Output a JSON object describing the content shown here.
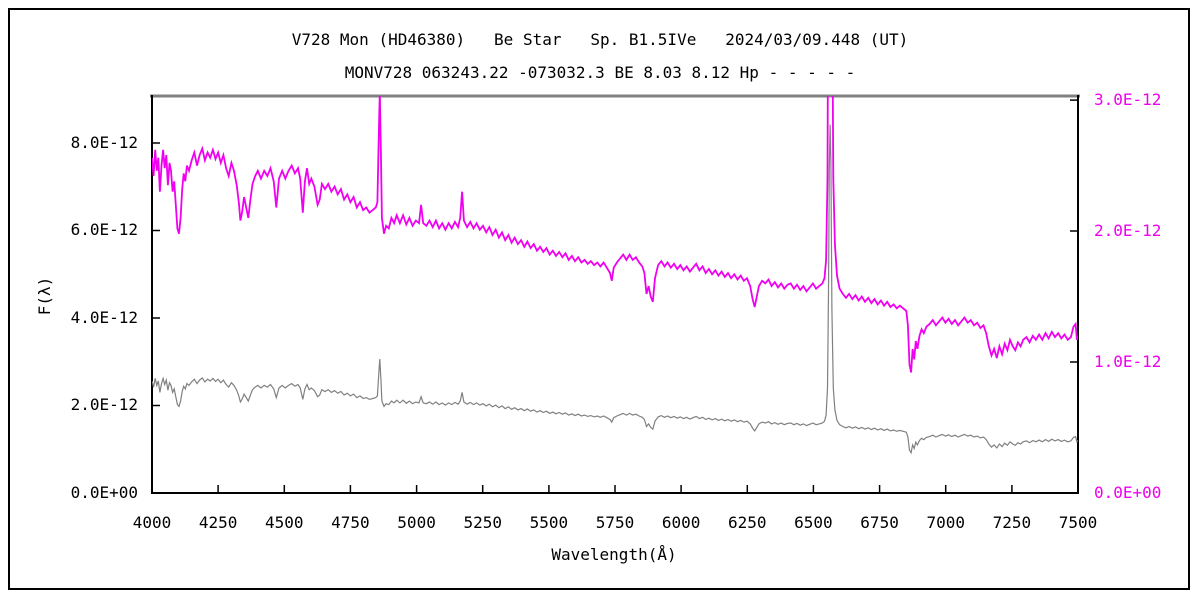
{
  "header": {
    "title_line1": "V728 Mon (HD46380)   Be Star   Sp. B1.5IVe   2024/03/09.448 (UT)",
    "title_line2": "MONV728 063243.22 -073032.3 BE 8.03 8.12 Hp - - - - -"
  },
  "colors": {
    "magenta_series": "#F000F0",
    "gray_series": "#808080",
    "axis_line": "#000000",
    "top_frame": "#808080",
    "background": "#FFFFFF"
  },
  "chart_data": {
    "type": "line",
    "title": "V728 Mon (HD46380) Be Star Sp. B1.5IVe 2024/03/09.448 (UT)",
    "grid": "off",
    "legend": "none",
    "x": {
      "label": "Wavelength(Å)",
      "min": 4000,
      "max": 7500,
      "ticks": [
        {
          "label": "4000",
          "value": 4000
        },
        {
          "label": "4250",
          "value": 4250
        },
        {
          "label": "4500",
          "value": 4500
        },
        {
          "label": "4750",
          "value": 4750
        },
        {
          "label": "5000",
          "value": 5000
        },
        {
          "label": "5250",
          "value": 5250
        },
        {
          "label": "5500",
          "value": 5500
        },
        {
          "label": "5750",
          "value": 5750
        },
        {
          "label": "6000",
          "value": 6000
        },
        {
          "label": "6250",
          "value": 6250
        },
        {
          "label": "6500",
          "value": 6500
        },
        {
          "label": "6750",
          "value": 6750
        },
        {
          "label": "7000",
          "value": 7000
        },
        {
          "label": "7250",
          "value": 7250
        },
        {
          "label": "7500",
          "value": 7500
        }
      ]
    },
    "y_left": {
      "label": "F(λ)",
      "max_x1e12": 9.074,
      "min_x1e12": 0,
      "ticks": [
        {
          "label": "0.0E+00",
          "value": 0
        },
        {
          "label": "2.0E-12",
          "value": 2
        },
        {
          "label": "4.0E-12",
          "value": 4
        },
        {
          "label": "6.0E-12",
          "value": 6
        },
        {
          "label": "8.0E-12",
          "value": 8
        }
      ]
    },
    "y_right": {
      "label": "",
      "max_x1e12": 3.031,
      "min_x1e12": 0,
      "ticks": [
        {
          "label": "0.0E+00",
          "value": 0
        },
        {
          "label": "1.0E-12",
          "value": 1
        },
        {
          "label": "2.0E-12",
          "value": 2
        },
        {
          "label": "3.0E-12",
          "value": 3
        }
      ]
    },
    "series": [
      {
        "name": "spectrum-left-scale",
        "axis": "left",
        "color": "#808080",
        "width": 1.2
      },
      {
        "name": "spectrum-right-scale",
        "axis": "right",
        "color": "#F000F0",
        "width": 1.8
      }
    ],
    "points_wavelength_flux_x1e12": [
      [
        4000,
        2.56
      ],
      [
        4006,
        2.42
      ],
      [
        4012,
        2.62
      ],
      [
        4018,
        2.46
      ],
      [
        4024,
        2.56
      ],
      [
        4030,
        2.3
      ],
      [
        4036,
        2.5
      ],
      [
        4042,
        2.62
      ],
      [
        4048,
        2.48
      ],
      [
        4054,
        2.58
      ],
      [
        4060,
        2.35
      ],
      [
        4066,
        2.52
      ],
      [
        4072,
        2.46
      ],
      [
        4078,
        2.3
      ],
      [
        4084,
        2.38
      ],
      [
        4090,
        2.2
      ],
      [
        4096,
        2.02
      ],
      [
        4102,
        1.98
      ],
      [
        4108,
        2.1
      ],
      [
        4114,
        2.32
      ],
      [
        4120,
        2.44
      ],
      [
        4126,
        2.38
      ],
      [
        4132,
        2.5
      ],
      [
        4140,
        2.46
      ],
      [
        4150,
        2.54
      ],
      [
        4160,
        2.6
      ],
      [
        4170,
        2.5
      ],
      [
        4180,
        2.58
      ],
      [
        4190,
        2.63
      ],
      [
        4200,
        2.54
      ],
      [
        4210,
        2.6
      ],
      [
        4220,
        2.56
      ],
      [
        4230,
        2.62
      ],
      [
        4240,
        2.55
      ],
      [
        4250,
        2.6
      ],
      [
        4260,
        2.52
      ],
      [
        4270,
        2.58
      ],
      [
        4280,
        2.48
      ],
      [
        4290,
        2.42
      ],
      [
        4300,
        2.52
      ],
      [
        4310,
        2.46
      ],
      [
        4320,
        2.35
      ],
      [
        4328,
        2.22
      ],
      [
        4334,
        2.08
      ],
      [
        4340,
        2.14
      ],
      [
        4348,
        2.26
      ],
      [
        4356,
        2.18
      ],
      [
        4364,
        2.1
      ],
      [
        4372,
        2.24
      ],
      [
        4380,
        2.36
      ],
      [
        4390,
        2.42
      ],
      [
        4400,
        2.46
      ],
      [
        4412,
        2.4
      ],
      [
        4424,
        2.46
      ],
      [
        4436,
        2.42
      ],
      [
        4448,
        2.48
      ],
      [
        4460,
        2.38
      ],
      [
        4470,
        2.18
      ],
      [
        4480,
        2.4
      ],
      [
        4492,
        2.46
      ],
      [
        4504,
        2.4
      ],
      [
        4516,
        2.46
      ],
      [
        4528,
        2.5
      ],
      [
        4540,
        2.44
      ],
      [
        4552,
        2.48
      ],
      [
        4560,
        2.4
      ],
      [
        4570,
        2.14
      ],
      [
        4578,
        2.38
      ],
      [
        4586,
        2.48
      ],
      [
        4594,
        2.36
      ],
      [
        4602,
        2.4
      ],
      [
        4614,
        2.34
      ],
      [
        4626,
        2.2
      ],
      [
        4634,
        2.24
      ],
      [
        4642,
        2.36
      ],
      [
        4654,
        2.32
      ],
      [
        4666,
        2.36
      ],
      [
        4678,
        2.3
      ],
      [
        4690,
        2.34
      ],
      [
        4702,
        2.28
      ],
      [
        4714,
        2.32
      ],
      [
        4726,
        2.24
      ],
      [
        4738,
        2.28
      ],
      [
        4750,
        2.22
      ],
      [
        4762,
        2.26
      ],
      [
        4774,
        2.18
      ],
      [
        4786,
        2.22
      ],
      [
        4798,
        2.16
      ],
      [
        4810,
        2.18
      ],
      [
        4822,
        2.14
      ],
      [
        4834,
        2.16
      ],
      [
        4846,
        2.18
      ],
      [
        4852,
        2.22
      ],
      [
        4857,
        2.7
      ],
      [
        4861,
        3.06
      ],
      [
        4865,
        2.6
      ],
      [
        4869,
        2.1
      ],
      [
        4877,
        1.98
      ],
      [
        4885,
        2.04
      ],
      [
        4895,
        2.02
      ],
      [
        4905,
        2.1
      ],
      [
        4915,
        2.06
      ],
      [
        4925,
        2.12
      ],
      [
        4937,
        2.06
      ],
      [
        4949,
        2.12
      ],
      [
        4961,
        2.05
      ],
      [
        4973,
        2.1
      ],
      [
        4985,
        2.04
      ],
      [
        4997,
        2.08
      ],
      [
        5009,
        2.06
      ],
      [
        5017,
        2.2
      ],
      [
        5025,
        2.06
      ],
      [
        5037,
        2.04
      ],
      [
        5049,
        2.08
      ],
      [
        5061,
        2.03
      ],
      [
        5073,
        2.08
      ],
      [
        5085,
        2.02
      ],
      [
        5097,
        2.06
      ],
      [
        5109,
        2.01
      ],
      [
        5121,
        2.06
      ],
      [
        5133,
        2.02
      ],
      [
        5145,
        2.07
      ],
      [
        5157,
        2.03
      ],
      [
        5165,
        2.1
      ],
      [
        5172,
        2.3
      ],
      [
        5179,
        2.08
      ],
      [
        5191,
        2.03
      ],
      [
        5203,
        2.07
      ],
      [
        5215,
        2.02
      ],
      [
        5227,
        2.06
      ],
      [
        5239,
        2.01
      ],
      [
        5251,
        2.04
      ],
      [
        5263,
        1.99
      ],
      [
        5275,
        2.03
      ],
      [
        5287,
        1.97
      ],
      [
        5299,
        2.01
      ],
      [
        5311,
        1.95
      ],
      [
        5323,
        1.99
      ],
      [
        5335,
        1.93
      ],
      [
        5347,
        1.97
      ],
      [
        5359,
        1.91
      ],
      [
        5371,
        1.95
      ],
      [
        5383,
        1.9
      ],
      [
        5395,
        1.93
      ],
      [
        5407,
        1.88
      ],
      [
        5419,
        1.92
      ],
      [
        5431,
        1.87
      ],
      [
        5443,
        1.9
      ],
      [
        5455,
        1.85
      ],
      [
        5467,
        1.88
      ],
      [
        5479,
        1.84
      ],
      [
        5491,
        1.87
      ],
      [
        5503,
        1.82
      ],
      [
        5515,
        1.85
      ],
      [
        5527,
        1.81
      ],
      [
        5539,
        1.84
      ],
      [
        5551,
        1.8
      ],
      [
        5563,
        1.83
      ],
      [
        5575,
        1.78
      ],
      [
        5587,
        1.81
      ],
      [
        5599,
        1.77
      ],
      [
        5611,
        1.8
      ],
      [
        5623,
        1.76
      ],
      [
        5635,
        1.78
      ],
      [
        5647,
        1.75
      ],
      [
        5659,
        1.77
      ],
      [
        5671,
        1.74
      ],
      [
        5683,
        1.76
      ],
      [
        5695,
        1.73
      ],
      [
        5707,
        1.76
      ],
      [
        5719,
        1.72
      ],
      [
        5731,
        1.68
      ],
      [
        5738,
        1.62
      ],
      [
        5745,
        1.72
      ],
      [
        5757,
        1.76
      ],
      [
        5769,
        1.79
      ],
      [
        5781,
        1.82
      ],
      [
        5793,
        1.78
      ],
      [
        5805,
        1.82
      ],
      [
        5817,
        1.78
      ],
      [
        5829,
        1.8
      ],
      [
        5841,
        1.76
      ],
      [
        5853,
        1.73
      ],
      [
        5861,
        1.68
      ],
      [
        5869,
        1.52
      ],
      [
        5877,
        1.58
      ],
      [
        5885,
        1.5
      ],
      [
        5893,
        1.46
      ],
      [
        5901,
        1.64
      ],
      [
        5913,
        1.74
      ],
      [
        5925,
        1.77
      ],
      [
        5937,
        1.73
      ],
      [
        5949,
        1.76
      ],
      [
        5961,
        1.72
      ],
      [
        5973,
        1.75
      ],
      [
        5985,
        1.71
      ],
      [
        5997,
        1.74
      ],
      [
        6009,
        1.7
      ],
      [
        6021,
        1.73
      ],
      [
        6033,
        1.69
      ],
      [
        6045,
        1.72
      ],
      [
        6057,
        1.75
      ],
      [
        6069,
        1.7
      ],
      [
        6081,
        1.73
      ],
      [
        6093,
        1.68
      ],
      [
        6105,
        1.71
      ],
      [
        6117,
        1.67
      ],
      [
        6129,
        1.7
      ],
      [
        6141,
        1.66
      ],
      [
        6153,
        1.69
      ],
      [
        6165,
        1.65
      ],
      [
        6177,
        1.68
      ],
      [
        6189,
        1.64
      ],
      [
        6201,
        1.67
      ],
      [
        6213,
        1.63
      ],
      [
        6225,
        1.66
      ],
      [
        6237,
        1.62
      ],
      [
        6249,
        1.64
      ],
      [
        6261,
        1.58
      ],
      [
        6270,
        1.48
      ],
      [
        6278,
        1.42
      ],
      [
        6286,
        1.5
      ],
      [
        6294,
        1.58
      ],
      [
        6306,
        1.62
      ],
      [
        6318,
        1.6
      ],
      [
        6330,
        1.63
      ],
      [
        6342,
        1.58
      ],
      [
        6354,
        1.61
      ],
      [
        6366,
        1.57
      ],
      [
        6378,
        1.6
      ],
      [
        6390,
        1.56
      ],
      [
        6402,
        1.59
      ],
      [
        6414,
        1.6
      ],
      [
        6426,
        1.56
      ],
      [
        6438,
        1.59
      ],
      [
        6450,
        1.55
      ],
      [
        6462,
        1.58
      ],
      [
        6474,
        1.54
      ],
      [
        6486,
        1.57
      ],
      [
        6498,
        1.6
      ],
      [
        6510,
        1.56
      ],
      [
        6522,
        1.58
      ],
      [
        6534,
        1.6
      ],
      [
        6542,
        1.64
      ],
      [
        6548,
        1.78
      ],
      [
        6553,
        2.4
      ],
      [
        6557,
        4.6
      ],
      [
        6560,
        7.4
      ],
      [
        6563,
        8.42
      ],
      [
        6566,
        7.6
      ],
      [
        6570,
        4.2
      ],
      [
        6575,
        2.4
      ],
      [
        6581,
        1.9
      ],
      [
        6589,
        1.66
      ],
      [
        6599,
        1.56
      ],
      [
        6611,
        1.52
      ],
      [
        6623,
        1.49
      ],
      [
        6635,
        1.52
      ],
      [
        6647,
        1.48
      ],
      [
        6659,
        1.51
      ],
      [
        6671,
        1.47
      ],
      [
        6683,
        1.5
      ],
      [
        6695,
        1.46
      ],
      [
        6707,
        1.49
      ],
      [
        6719,
        1.45
      ],
      [
        6731,
        1.48
      ],
      [
        6743,
        1.44
      ],
      [
        6755,
        1.47
      ],
      [
        6767,
        1.43
      ],
      [
        6779,
        1.46
      ],
      [
        6791,
        1.42
      ],
      [
        6803,
        1.44
      ],
      [
        6815,
        1.41
      ],
      [
        6827,
        1.43
      ],
      [
        6839,
        1.41
      ],
      [
        6851,
        1.39
      ],
      [
        6857,
        1.28
      ],
      [
        6863,
        0.98
      ],
      [
        6869,
        0.92
      ],
      [
        6875,
        1.1
      ],
      [
        6881,
        1.02
      ],
      [
        6887,
        1.16
      ],
      [
        6893,
        1.1
      ],
      [
        6901,
        1.2
      ],
      [
        6909,
        1.25
      ],
      [
        6917,
        1.22
      ],
      [
        6927,
        1.27
      ],
      [
        6939,
        1.29
      ],
      [
        6951,
        1.32
      ],
      [
        6963,
        1.28
      ],
      [
        6975,
        1.31
      ],
      [
        6987,
        1.34
      ],
      [
        6999,
        1.3
      ],
      [
        7011,
        1.33
      ],
      [
        7023,
        1.29
      ],
      [
        7035,
        1.32
      ],
      [
        7047,
        1.28
      ],
      [
        7059,
        1.31
      ],
      [
        7071,
        1.34
      ],
      [
        7083,
        1.3
      ],
      [
        7095,
        1.32
      ],
      [
        7107,
        1.28
      ],
      [
        7119,
        1.3
      ],
      [
        7131,
        1.26
      ],
      [
        7143,
        1.28
      ],
      [
        7153,
        1.22
      ],
      [
        7163,
        1.12
      ],
      [
        7173,
        1.05
      ],
      [
        7183,
        1.1
      ],
      [
        7193,
        1.03
      ],
      [
        7203,
        1.12
      ],
      [
        7213,
        1.06
      ],
      [
        7223,
        1.14
      ],
      [
        7233,
        1.09
      ],
      [
        7243,
        1.17
      ],
      [
        7253,
        1.12
      ],
      [
        7263,
        1.09
      ],
      [
        7273,
        1.15
      ],
      [
        7283,
        1.12
      ],
      [
        7293,
        1.17
      ],
      [
        7305,
        1.19
      ],
      [
        7317,
        1.15
      ],
      [
        7329,
        1.2
      ],
      [
        7341,
        1.17
      ],
      [
        7353,
        1.21
      ],
      [
        7365,
        1.17
      ],
      [
        7377,
        1.22
      ],
      [
        7389,
        1.18
      ],
      [
        7401,
        1.23
      ],
      [
        7413,
        1.19
      ],
      [
        7425,
        1.22
      ],
      [
        7437,
        1.18
      ],
      [
        7449,
        1.21
      ],
      [
        7461,
        1.17
      ],
      [
        7473,
        1.19
      ],
      [
        7483,
        1.27
      ],
      [
        7491,
        1.29
      ],
      [
        7496,
        1.17
      ],
      [
        7500,
        1.2
      ]
    ]
  }
}
